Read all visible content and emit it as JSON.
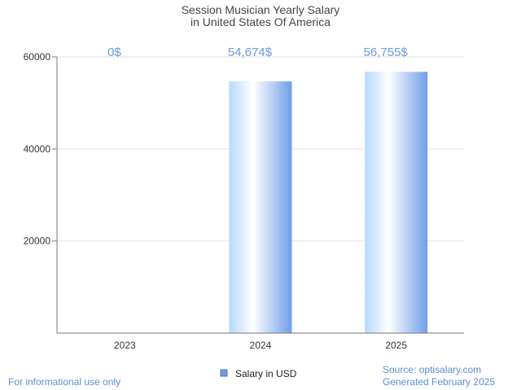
{
  "chart_data": {
    "type": "bar",
    "title_lines": [
      "Session Musician Yearly Salary",
      "in United States Of America"
    ],
    "categories": [
      "2023",
      "2024",
      "2025"
    ],
    "series": [
      {
        "name": "Salary in USD",
        "values": [
          0,
          54674,
          56755
        ]
      }
    ],
    "value_labels": [
      "0$",
      "54,674$",
      "56,755$"
    ],
    "y_ticks": [
      20000,
      40000,
      60000
    ],
    "y_tick_labels": [
      "20000",
      "40000",
      "60000"
    ],
    "ylim": [
      0,
      60000
    ],
    "grid": true,
    "legend_position": "bottom-center",
    "bar_color": "#6a9ae0"
  },
  "footer": {
    "left": "For informational use only",
    "source": "Source: optisalary.com",
    "generated": "Generated February 2025"
  }
}
